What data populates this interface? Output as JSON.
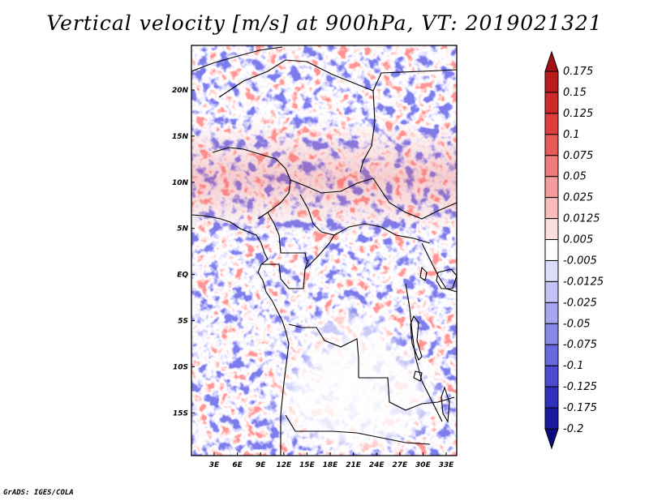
{
  "title": "Vertical velocity [m/s] at 900hPa, VT: 2019021321",
  "credit": "GrADS: IGES/COLA",
  "map": {
    "variable": "Vertical velocity",
    "units": "m/s",
    "level": "900hPa",
    "valid_time": "2019021321",
    "region": "Central Africa",
    "lat_labels": [
      "20N",
      "15N",
      "10N",
      "5N",
      "EQ",
      "5S",
      "10S",
      "15S"
    ],
    "lon_labels": [
      "3E",
      "6E",
      "9E",
      "12E",
      "15E",
      "18E",
      "21E",
      "24E",
      "27E",
      "30E",
      "33E"
    ]
  },
  "colorbar": {
    "labels": [
      "0.175",
      "0.15",
      "0.125",
      "0.1",
      "0.075",
      "0.05",
      "0.025",
      "0.0125",
      "0.005",
      "-0.005",
      "-0.0125",
      "-0.025",
      "-0.05",
      "-0.075",
      "-0.1",
      "-0.125",
      "-0.175",
      "-0.2"
    ],
    "colors": [
      "#a50f15",
      "#b71c1c",
      "#cb2a2a",
      "#dd3d3d",
      "#e85a5a",
      "#ef7b7b",
      "#f59c9c",
      "#f9bdbd",
      "#fcdede",
      "#ffffff",
      "#dcdcfb",
      "#c3c3f6",
      "#a5a5f0",
      "#8787e8",
      "#6969de",
      "#4b4bd2",
      "#3030bf",
      "#1a1aa0",
      "#0c0c80"
    ]
  },
  "colors": {
    "positive": "#e05050",
    "negative": "#5a5adf",
    "border": "#000000"
  }
}
